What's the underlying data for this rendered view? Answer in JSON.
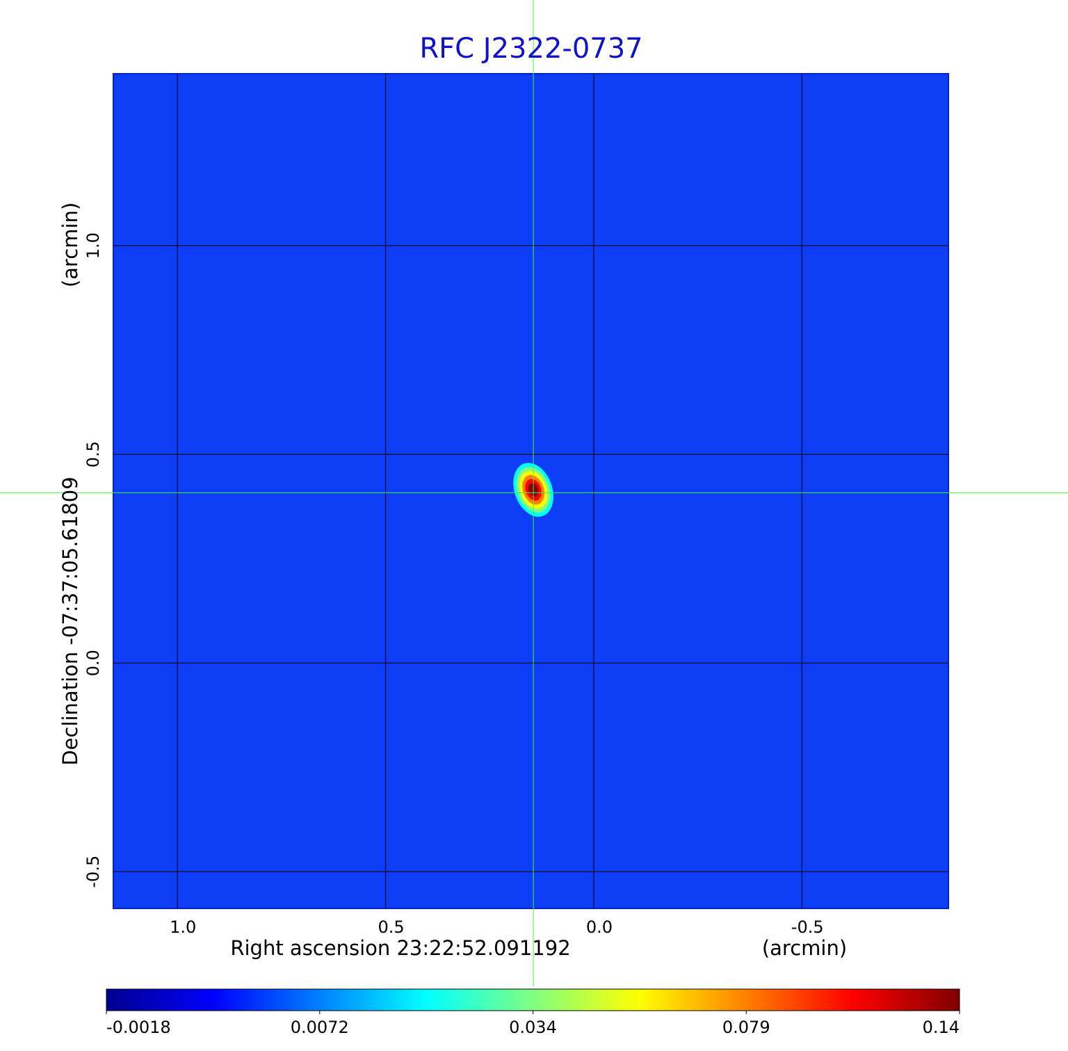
{
  "chart_data": {
    "type": "image",
    "title": "RFC J2322-0737",
    "x_label": "Right ascension  23:22:52.091192",
    "x_unit": "(arcmin)",
    "y_label": "Declination  -07:37:05.61809",
    "y_unit": "(arcmin)",
    "xlim": [
      1.154,
      -0.852
    ],
    "ylim": [
      -0.588,
      1.412
    ],
    "xticks": [
      {
        "value": 1,
        "label": "1.0"
      },
      0.5,
      {
        "value": 0,
        "label": "0.0"
      },
      -0.5
    ],
    "yticks": [
      -0.5,
      {
        "value": 0,
        "label": "0.0"
      },
      0.5,
      {
        "value": 1,
        "label": "1.0"
      }
    ],
    "grid": true,
    "image_color": "#0d3ef6",
    "crosshair": {
      "x": 0.145,
      "y": 0.408,
      "color": "#33ff33"
    },
    "source": {
      "x": 0.145,
      "y": 0.41,
      "peak": 0.14
    },
    "colormap": [
      "#00008f",
      "#0000ff",
      "#0080ff",
      "#00ffff",
      "#80ff80",
      "#ffff00",
      "#ff8000",
      "#ff0000",
      "#800000"
    ],
    "colorbar_ticks": [
      {
        "value": -0.0018,
        "label": "-0.0018"
      },
      0.0072,
      0.034,
      0.079,
      0.14
    ]
  }
}
